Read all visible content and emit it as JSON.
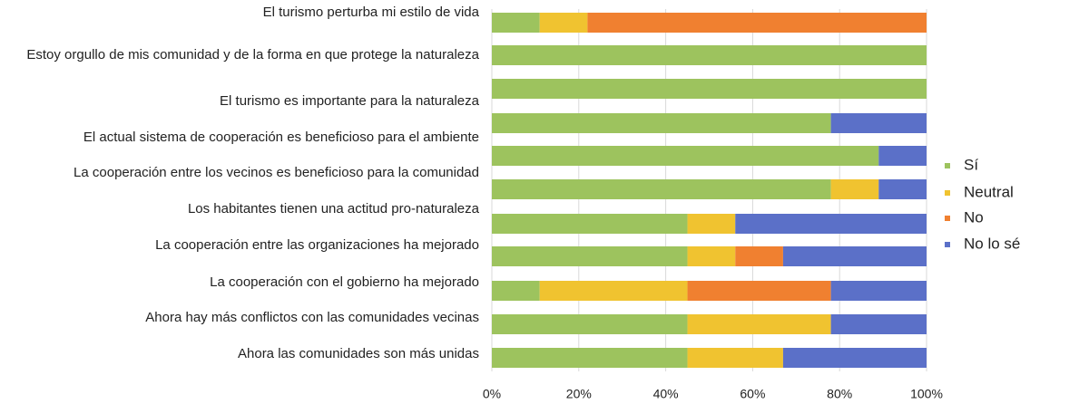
{
  "chart_data": {
    "type": "stacked-bar-horizontal",
    "categories": [
      "El turismo perturba mi estilo de vida",
      "Estoy orgullo de mis comunidad y de la forma en que protege la naturaleza",
      "El turismo es importante para la naturaleza",
      null,
      "El actual sistema de cooperación es beneficioso para el ambiente",
      "La cooperación entre los vecinos es beneficioso para la comunidad",
      "Los habitantes tienen una actitud pro-naturaleza",
      "La cooperación entre las organizaciones ha mejorado",
      "La cooperación con el gobierno ha mejorado",
      "Ahora hay más conflictos con las comunidades vecinas",
      "Ahora las comunidades son más unidas"
    ],
    "series": [
      {
        "name": "Sí",
        "color": "#9dc35e",
        "values": [
          11,
          100,
          100,
          78,
          89,
          78,
          45,
          45,
          11,
          45,
          45
        ]
      },
      {
        "name": "Neutral",
        "color": "#f0c330",
        "values": [
          11,
          0,
          0,
          0,
          0,
          11,
          11,
          11,
          34,
          33,
          22
        ]
      },
      {
        "name": "No",
        "color": "#f08030",
        "values": [
          78,
          0,
          0,
          0,
          0,
          0,
          0,
          11,
          33,
          0,
          0
        ]
      },
      {
        "name": "No lo sé",
        "color": "#5b70c8",
        "values": [
          0,
          0,
          0,
          22,
          11,
          11,
          44,
          33,
          22,
          22,
          33
        ]
      }
    ],
    "xlim": [
      0,
      100
    ],
    "xticks": [
      {
        "value": 0,
        "label": "0%"
      },
      {
        "value": 20,
        "label": "20%"
      },
      {
        "value": 40,
        "label": "40%"
      },
      {
        "value": 60,
        "label": "60%"
      },
      {
        "value": 80,
        "label": "80%"
      },
      {
        "value": 100,
        "label": "100%"
      }
    ],
    "grid": true,
    "legend": "right"
  }
}
